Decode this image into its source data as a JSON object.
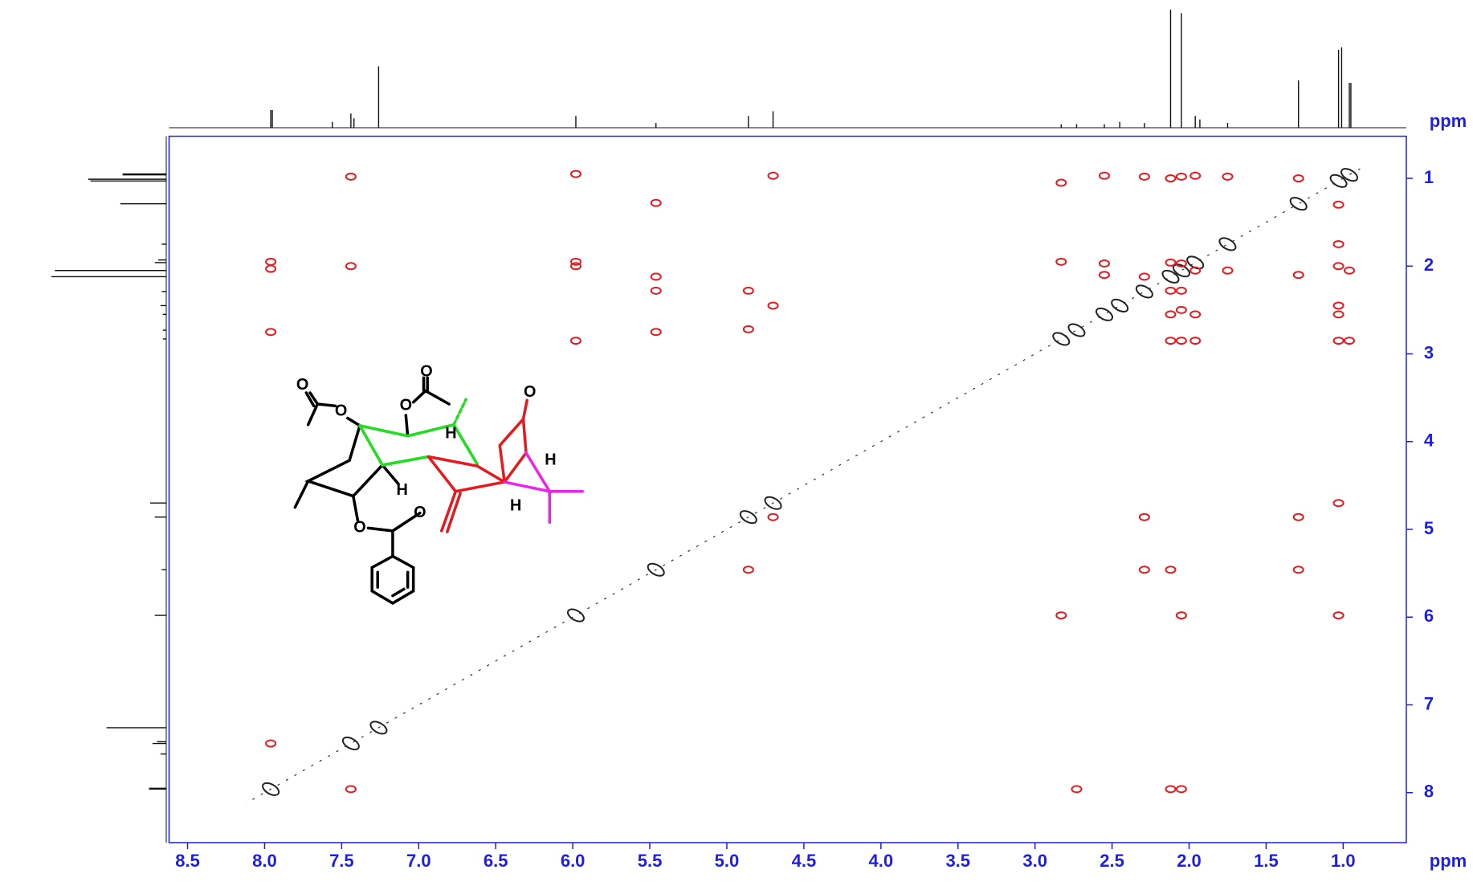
{
  "chart_data": {
    "type": "nmr-2d",
    "x_label": "ppm",
    "y_label": "ppm",
    "xlim": [
      8.62,
      0.59
    ],
    "ylim": [
      0.52,
      8.57
    ],
    "xticks": [
      8.5,
      {
        "value": 8,
        "label": "8.0"
      },
      7.5,
      {
        "value": 7,
        "label": "7.0"
      },
      6.5,
      {
        "value": 6,
        "label": "6.0"
      },
      5.5,
      {
        "value": 5,
        "label": "5.0"
      },
      4.5,
      {
        "value": 4,
        "label": "4.0"
      },
      3.5,
      {
        "value": 3,
        "label": "3.0"
      },
      2.5,
      {
        "value": 2,
        "label": "2.0"
      },
      1.5,
      {
        "value": 1,
        "label": "1.0"
      }
    ],
    "yticks": [
      1,
      2,
      3,
      4,
      5,
      6,
      7,
      8
    ],
    "axis_color": "#1e1ee6",
    "projection": {
      "color": "#111111",
      "shifts": [
        7.96,
        7.95,
        7.56,
        7.44,
        7.42,
        7.26,
        5.98,
        5.46,
        4.86,
        4.7,
        2.83,
        2.73,
        2.55,
        2.45,
        2.29,
        2.12,
        2.05,
        1.96,
        1.93,
        1.75,
        1.29,
        1.03,
        1.01,
        0.96,
        0.95
      ],
      "heights": [
        15,
        15,
        5,
        12,
        8,
        52,
        10,
        4,
        10,
        14,
        3,
        3,
        3,
        5,
        4,
        100,
        97,
        10,
        7,
        4,
        40,
        66,
        68,
        38,
        38
      ]
    },
    "series": [
      {
        "color": "#222222",
        "x": [
          7.96,
          7.44,
          7.26,
          5.98,
          5.46,
          4.86,
          4.7,
          2.83,
          2.73,
          2.55,
          2.45,
          2.29,
          2.12,
          2.05,
          1.96,
          1.75,
          1.29,
          1.03,
          0.96
        ],
        "y": [
          7.96,
          7.44,
          7.26,
          5.98,
          5.46,
          4.86,
          4.7,
          2.83,
          2.73,
          2.55,
          2.45,
          2.29,
          2.12,
          2.05,
          1.96,
          1.75,
          1.29,
          1.03,
          0.96
        ]
      },
      {
        "color": "#e8181c",
        "x": [
          7.96,
          7.96,
          7.96,
          7.96,
          7.44,
          7.44,
          7.44,
          5.98,
          5.98,
          5.98,
          5.98,
          5.46,
          5.46,
          5.46,
          5.46,
          4.86,
          4.86,
          4.86,
          4.7,
          4.7,
          4.7,
          2.83,
          2.83,
          2.83,
          2.73,
          2.55,
          2.55,
          2.55,
          2.29,
          2.29,
          2.29,
          2.29,
          2.12,
          2.12,
          2.12,
          2.12,
          2.12,
          2.12,
          2.12,
          2.05,
          2.05,
          2.05,
          2.05,
          2.05,
          2.05,
          2.05,
          1.96,
          1.96,
          1.96,
          1.96,
          1.75,
          1.75,
          1.29,
          1.29,
          1.29,
          1.29,
          1.03,
          1.03,
          1.03,
          1.03,
          1.03,
          1.03,
          1.03,
          1.03,
          0.96,
          0.96
        ],
        "y": [
          1.95,
          2.03,
          2.75,
          7.44,
          0.98,
          2.0,
          7.96,
          0.95,
          1.95,
          2.0,
          2.85,
          1.28,
          2.12,
          2.28,
          2.75,
          2.28,
          2.72,
          5.46,
          0.97,
          2.45,
          4.86,
          1.05,
          1.95,
          5.98,
          7.96,
          0.97,
          1.97,
          2.1,
          0.98,
          2.12,
          4.86,
          5.46,
          1.0,
          1.96,
          2.28,
          2.55,
          2.85,
          5.46,
          7.96,
          0.98,
          1.97,
          2.28,
          2.5,
          2.85,
          5.98,
          7.96,
          0.97,
          2.05,
          2.55,
          2.85,
          0.98,
          2.05,
          1.0,
          2.1,
          4.86,
          5.46,
          1.3,
          1.75,
          2.0,
          2.45,
          2.55,
          2.85,
          4.7,
          5.98,
          2.05,
          2.85
        ]
      }
    ]
  },
  "structure": {
    "atoms": [
      "O",
      "O",
      "O",
      "O",
      "O",
      "O",
      "O",
      "H",
      "H",
      "H",
      "H"
    ]
  }
}
